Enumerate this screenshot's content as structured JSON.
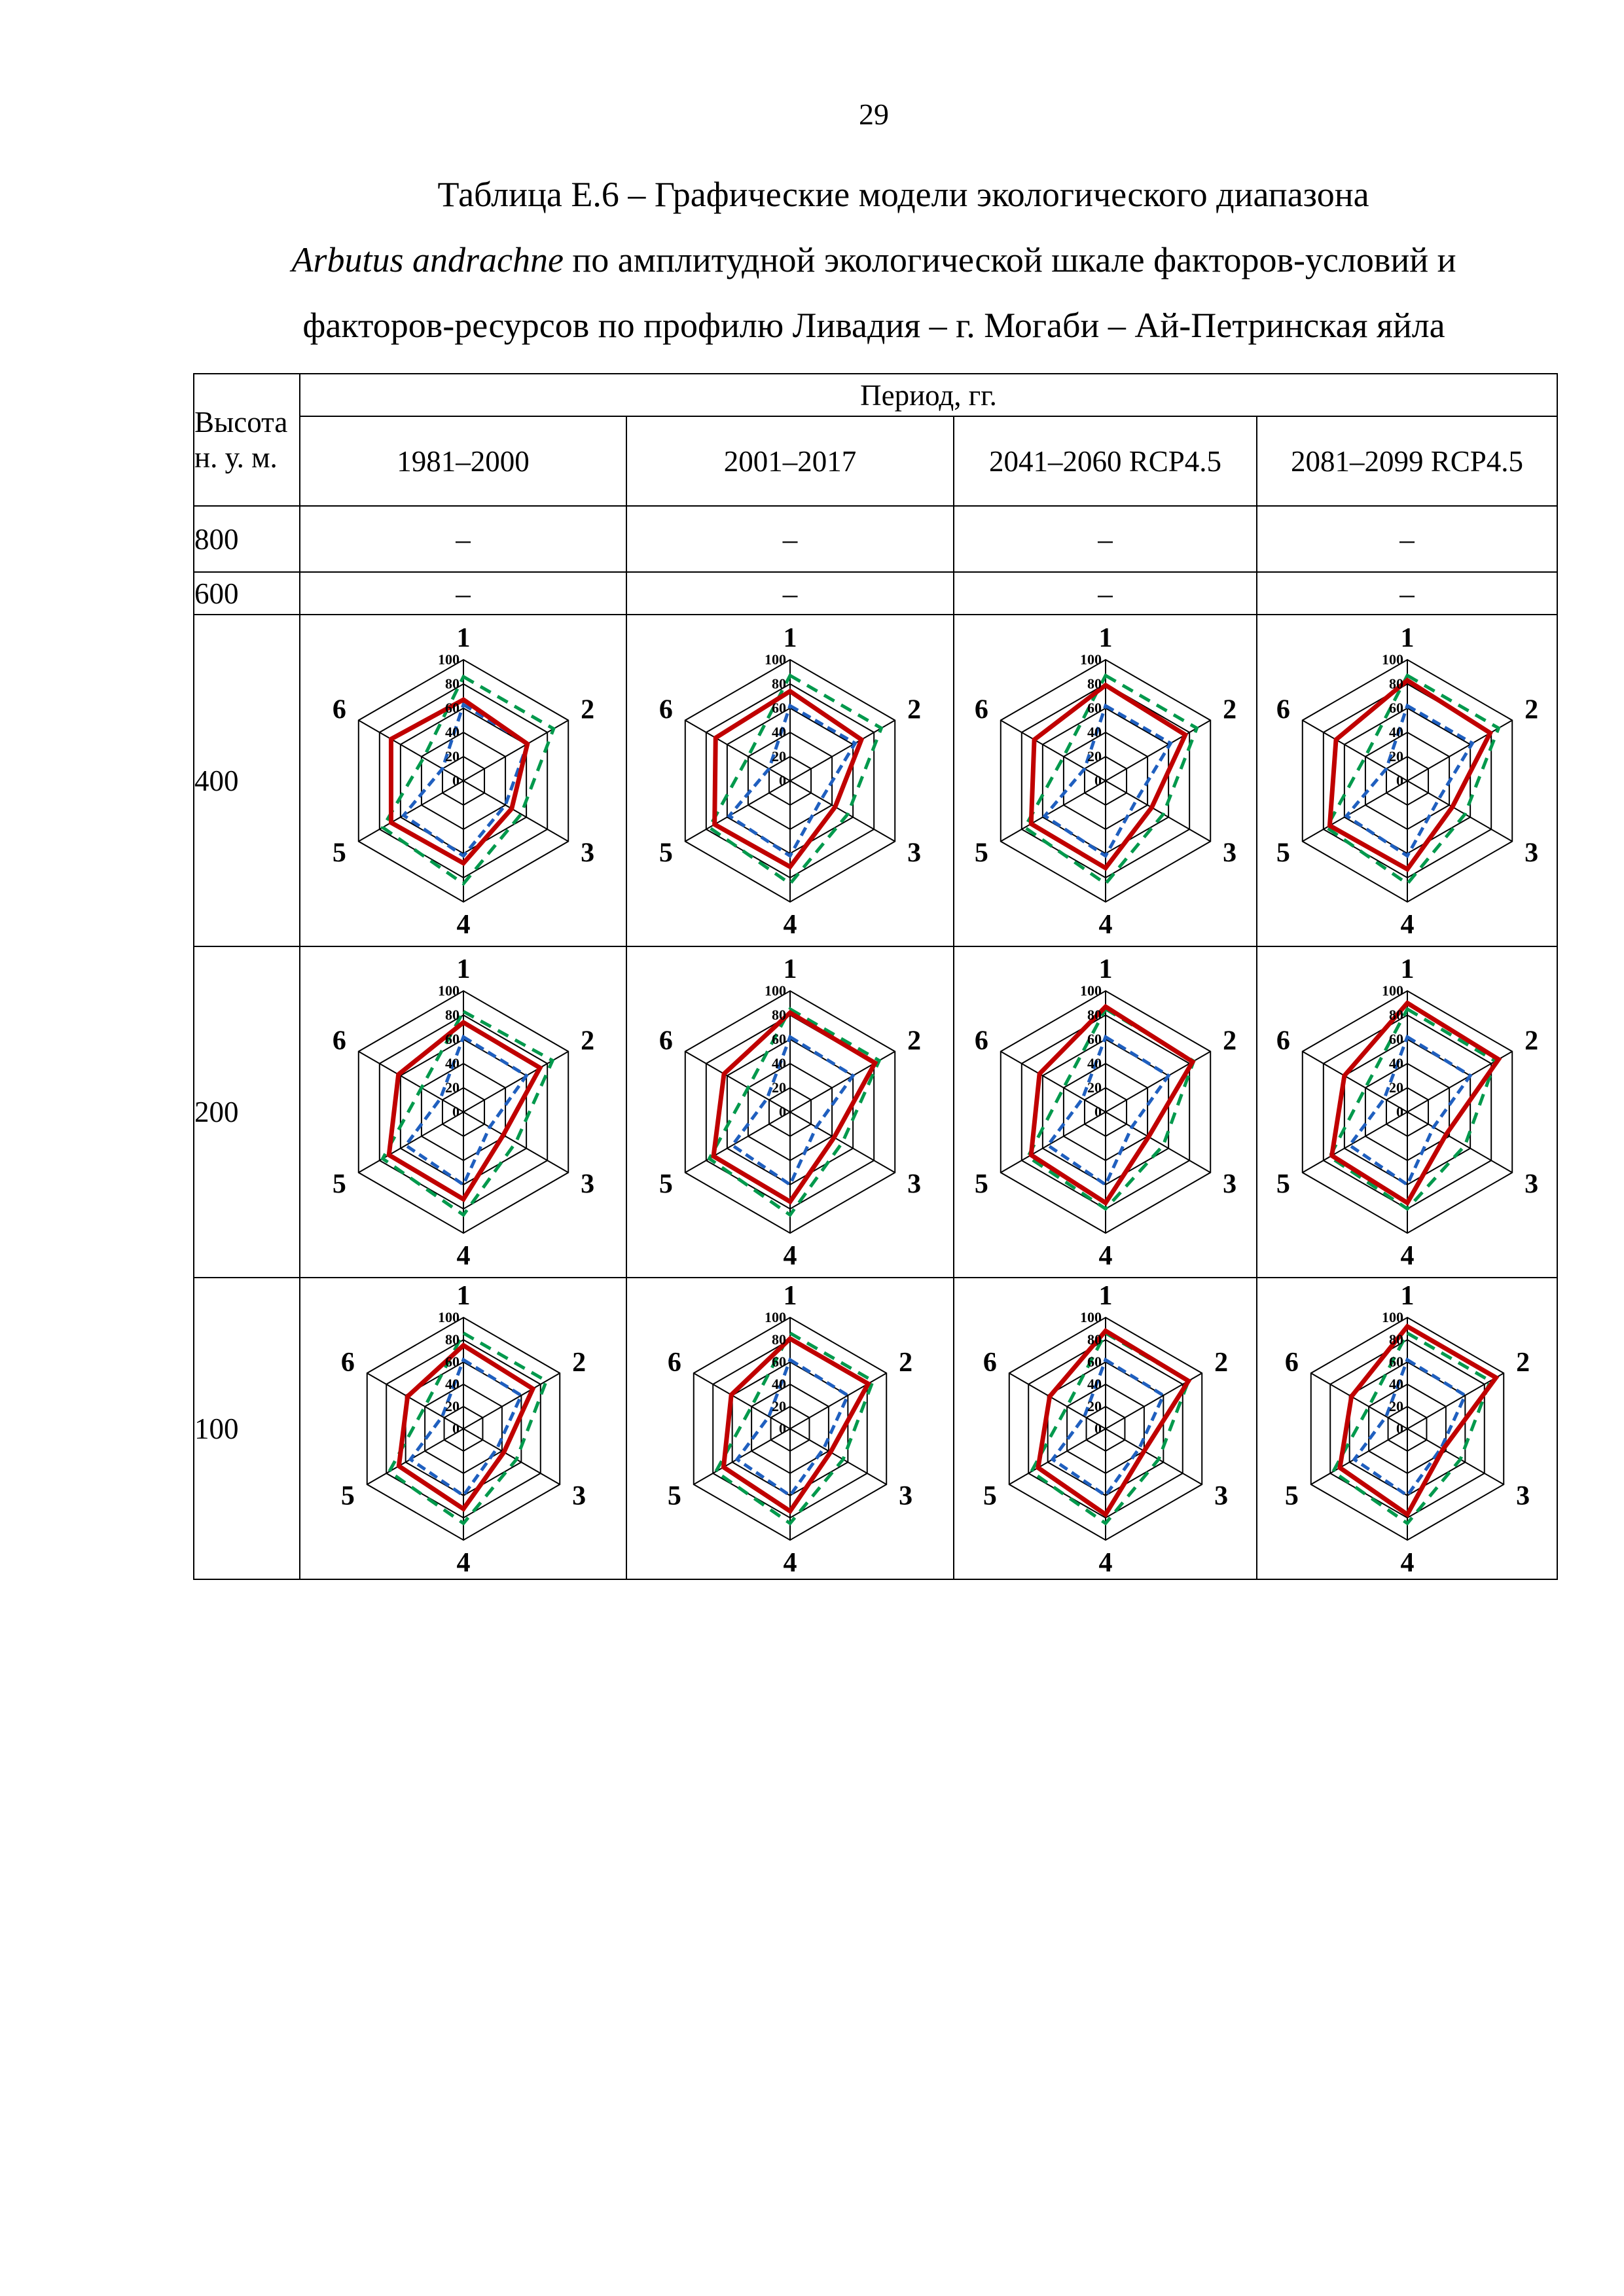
{
  "page_number": "29",
  "title": {
    "line1": "Таблица Е.6 – Графические модели экологического диапазона",
    "species": "Arbutus andrachne",
    "line2_rest": " по амплитудной экологической шкале факторов-условий и",
    "line3": "факторов-ресурсов по профилю Ливадия – г. Могаби – Ай-Петринская яйла"
  },
  "table": {
    "height_header": "Высота н. у. м.",
    "period_header": "Период, гг.",
    "periods": [
      "1981–2000",
      "2001–2017",
      "2041–2060 RCP4.5",
      "2081–2099 RCP4.5"
    ],
    "rows": [
      {
        "height": "800",
        "cells": [
          "–",
          "–",
          "–",
          "–"
        ]
      },
      {
        "height": "600",
        "cells": [
          "–",
          "–",
          "–",
          "–"
        ]
      },
      {
        "height": "400"
      },
      {
        "height": "200"
      },
      {
        "height": "100"
      }
    ]
  },
  "chart_data": [
    {
      "type": "radar",
      "height": "400",
      "period": "1981–2000",
      "axes": [
        "1",
        "2",
        "3",
        "4",
        "5",
        "6"
      ],
      "ticks": [
        "0",
        "20",
        "40",
        "60",
        "80",
        "100"
      ],
      "range": [
        0,
        100
      ],
      "series": [
        {
          "color": "#c00000",
          "style": "solid",
          "values": [
            67,
            61,
            46,
            68,
            69,
            69
          ]
        },
        {
          "color": "#1f5fbf",
          "style": "dashed",
          "values": [
            63,
            61,
            40,
            62,
            57,
            20
          ]
        },
        {
          "color": "#00994c",
          "style": "dashed",
          "values": [
            86,
            86,
            55,
            85,
            77,
            38
          ]
        }
      ]
    },
    {
      "type": "radar",
      "height": "400",
      "period": "2001–2017",
      "axes": [
        "1",
        "2",
        "3",
        "4",
        "5",
        "6"
      ],
      "ticks": [
        "0",
        "20",
        "40",
        "60",
        "80",
        "100"
      ],
      "range": [
        0,
        100
      ],
      "series": [
        {
          "color": "#c00000",
          "style": "solid",
          "values": [
            74,
            68,
            43,
            71,
            72,
            71
          ]
        },
        {
          "color": "#1f5fbf",
          "style": "dashed",
          "values": [
            62,
            62,
            30,
            62,
            58,
            20
          ]
        },
        {
          "color": "#00994c",
          "style": "dashed",
          "values": [
            87,
            87,
            55,
            85,
            77,
            40
          ]
        }
      ]
    },
    {
      "type": "radar",
      "height": "400",
      "period": "2041–2060 RCP4.5",
      "axes": [
        "1",
        "2",
        "3",
        "4",
        "5",
        "6"
      ],
      "ticks": [
        "0",
        "20",
        "40",
        "60",
        "80",
        "100"
      ],
      "range": [
        0,
        100
      ],
      "series": [
        {
          "color": "#c00000",
          "style": "solid",
          "values": [
            79,
            76,
            44,
            72,
            71,
            68
          ]
        },
        {
          "color": "#1f5fbf",
          "style": "dashed",
          "values": [
            62,
            62,
            30,
            62,
            58,
            20
          ]
        },
        {
          "color": "#00994c",
          "style": "dashed",
          "values": [
            87,
            87,
            55,
            85,
            77,
            40
          ]
        }
      ]
    },
    {
      "type": "radar",
      "height": "400",
      "period": "2081–2099 RCP4.5",
      "axes": [
        "1",
        "2",
        "3",
        "4",
        "5",
        "6"
      ],
      "ticks": [
        "0",
        "20",
        "40",
        "60",
        "80",
        "100"
      ],
      "range": [
        0,
        100
      ],
      "series": [
        {
          "color": "#c00000",
          "style": "solid",
          "values": [
            83,
            79,
            43,
            73,
            74,
            68
          ]
        },
        {
          "color": "#1f5fbf",
          "style": "dashed",
          "values": [
            62,
            62,
            30,
            62,
            58,
            20
          ]
        },
        {
          "color": "#00994c",
          "style": "dashed",
          "values": [
            87,
            87,
            55,
            85,
            77,
            40
          ]
        }
      ]
    },
    {
      "type": "radar",
      "height": "200",
      "period": "1981–2000",
      "axes": [
        "1",
        "2",
        "3",
        "4",
        "5",
        "6"
      ],
      "ticks": [
        "0",
        "20",
        "40",
        "60",
        "80",
        "100"
      ],
      "range": [
        0,
        100
      ],
      "series": [
        {
          "color": "#c00000",
          "style": "solid",
          "values": [
            74,
            73,
            38,
            72,
            71,
            62
          ]
        },
        {
          "color": "#1f5fbf",
          "style": "dashed",
          "values": [
            62,
            60,
            25,
            60,
            55,
            22
          ]
        },
        {
          "color": "#00994c",
          "style": "dashed",
          "values": [
            83,
            85,
            50,
            85,
            77,
            40
          ]
        }
      ]
    },
    {
      "type": "radar",
      "height": "200",
      "period": "2001–2017",
      "axes": [
        "1",
        "2",
        "3",
        "4",
        "5",
        "6"
      ],
      "ticks": [
        "0",
        "20",
        "40",
        "60",
        "80",
        "100"
      ],
      "range": [
        0,
        100
      ],
      "series": [
        {
          "color": "#c00000",
          "style": "solid",
          "values": [
            82,
            81,
            42,
            74,
            73,
            63
          ]
        },
        {
          "color": "#1f5fbf",
          "style": "dashed",
          "values": [
            62,
            60,
            25,
            60,
            55,
            22
          ]
        },
        {
          "color": "#00994c",
          "style": "dashed",
          "values": [
            85,
            85,
            50,
            85,
            77,
            40
          ]
        }
      ]
    },
    {
      "type": "radar",
      "height": "200",
      "period": "2041–2060 RCP4.5",
      "axes": [
        "1",
        "2",
        "3",
        "4",
        "5",
        "6"
      ],
      "ticks": [
        "0",
        "20",
        "40",
        "60",
        "80",
        "100"
      ],
      "range": [
        0,
        100
      ],
      "series": [
        {
          "color": "#c00000",
          "style": "solid",
          "values": [
            87,
            83,
            41,
            75,
            71,
            63
          ]
        },
        {
          "color": "#1f5fbf",
          "style": "dashed",
          "values": [
            62,
            60,
            25,
            60,
            55,
            22
          ]
        },
        {
          "color": "#00994c",
          "style": "dashed",
          "values": [
            85,
            84,
            55,
            80,
            74,
            40
          ]
        }
      ]
    },
    {
      "type": "radar",
      "height": "200",
      "period": "2081–2099 RCP4.5",
      "axes": [
        "1",
        "2",
        "3",
        "4",
        "5",
        "6"
      ],
      "ticks": [
        "0",
        "20",
        "40",
        "60",
        "80",
        "100"
      ],
      "range": [
        0,
        100
      ],
      "series": [
        {
          "color": "#c00000",
          "style": "solid",
          "values": [
            90,
            87,
            37,
            75,
            72,
            60
          ]
        },
        {
          "color": "#1f5fbf",
          "style": "dashed",
          "values": [
            62,
            60,
            25,
            60,
            55,
            22
          ]
        },
        {
          "color": "#00994c",
          "style": "dashed",
          "values": [
            85,
            84,
            55,
            80,
            74,
            40
          ]
        }
      ]
    },
    {
      "type": "radar",
      "height": "100",
      "period": "1981–2000",
      "axes": [
        "1",
        "2",
        "3",
        "4",
        "5",
        "6"
      ],
      "ticks": [
        "0",
        "20",
        "40",
        "60",
        "80",
        "100"
      ],
      "range": [
        0,
        100
      ],
      "series": [
        {
          "color": "#c00000",
          "style": "solid",
          "values": [
            75,
            72,
            42,
            72,
            67,
            58
          ]
        },
        {
          "color": "#1f5fbf",
          "style": "dashed",
          "values": [
            62,
            60,
            35,
            60,
            55,
            22
          ]
        },
        {
          "color": "#00994c",
          "style": "dashed",
          "values": [
            86,
            86,
            55,
            85,
            77,
            40
          ]
        }
      ]
    },
    {
      "type": "radar",
      "height": "100",
      "period": "2001–2017",
      "axes": [
        "1",
        "2",
        "3",
        "4",
        "5",
        "6"
      ],
      "ticks": [
        "0",
        "20",
        "40",
        "60",
        "80",
        "100"
      ],
      "range": [
        0,
        100
      ],
      "series": [
        {
          "color": "#c00000",
          "style": "solid",
          "values": [
            81,
            81,
            42,
            74,
            69,
            61
          ]
        },
        {
          "color": "#1f5fbf",
          "style": "dashed",
          "values": [
            62,
            60,
            35,
            60,
            55,
            22
          ]
        },
        {
          "color": "#00994c",
          "style": "dashed",
          "values": [
            86,
            86,
            55,
            85,
            77,
            40
          ]
        }
      ]
    },
    {
      "type": "radar",
      "height": "100",
      "period": "2041–2060 RCP4.5",
      "axes": [
        "1",
        "2",
        "3",
        "4",
        "5",
        "6"
      ],
      "ticks": [
        "0",
        "20",
        "40",
        "60",
        "80",
        "100"
      ],
      "range": [
        0,
        100
      ],
      "series": [
        {
          "color": "#c00000",
          "style": "solid",
          "values": [
            88,
            86,
            40,
            77,
            70,
            58
          ]
        },
        {
          "color": "#1f5fbf",
          "style": "dashed",
          "values": [
            62,
            60,
            35,
            60,
            55,
            22
          ]
        },
        {
          "color": "#00994c",
          "style": "dashed",
          "values": [
            86,
            86,
            55,
            85,
            77,
            40
          ]
        }
      ]
    },
    {
      "type": "radar",
      "height": "100",
      "period": "2081–2099 RCP4.5",
      "axes": [
        "1",
        "2",
        "3",
        "4",
        "5",
        "6"
      ],
      "ticks": [
        "0",
        "20",
        "40",
        "60",
        "80",
        "100"
      ],
      "range": [
        0,
        100
      ],
      "series": [
        {
          "color": "#c00000",
          "style": "solid",
          "values": [
            92,
            92,
            37,
            77,
            70,
            58
          ]
        },
        {
          "color": "#1f5fbf",
          "style": "dashed",
          "values": [
            62,
            60,
            35,
            60,
            55,
            22
          ]
        },
        {
          "color": "#00994c",
          "style": "dashed",
          "values": [
            86,
            86,
            55,
            85,
            77,
            40
          ]
        }
      ]
    }
  ]
}
